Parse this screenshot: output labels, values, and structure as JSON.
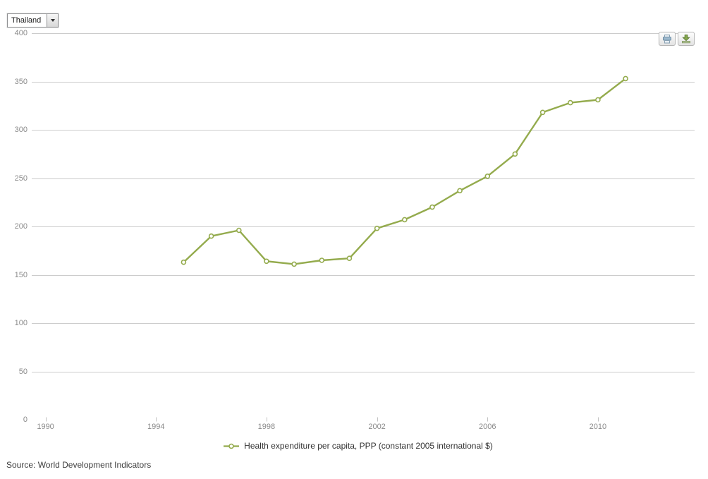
{
  "controls": {
    "country_selector": {
      "value": "Thailand"
    }
  },
  "chart_data": {
    "type": "line",
    "title": "",
    "xlabel": "",
    "ylabel": "",
    "series": [
      {
        "name": "Health expenditure per capita, PPP (constant 2005 international $)",
        "color": "#94ab4d",
        "x": [
          1995,
          1996,
          1997,
          1998,
          1999,
          2000,
          2001,
          2002,
          2003,
          2004,
          2005,
          2006,
          2007,
          2008,
          2009,
          2010,
          2011
        ],
        "values": [
          163,
          190,
          196,
          164,
          161,
          165,
          167,
          198,
          207,
          220,
          237,
          252,
          275,
          318,
          328,
          331,
          353
        ]
      }
    ],
    "xticks": [
      1990,
      1994,
      1998,
      2002,
      2006,
      2010
    ],
    "yticks": [
      0,
      50,
      100,
      150,
      200,
      250,
      300,
      350,
      400
    ],
    "xlim": [
      1989.5,
      2013.5
    ],
    "ylim": [
      0,
      400
    ],
    "grid": "horizontal-only",
    "markers": true,
    "legend_position": "bottom-center"
  },
  "legend": {
    "label": "Health expenditure per capita, PPP (constant 2005 international $)"
  },
  "source": {
    "text": "Source: World Development Indicators"
  },
  "colors": {
    "grid": "#cccccc",
    "tick": "#c2c2c2",
    "axis_label": "#8a8a8a",
    "legend_text": "#333333",
    "source_text": "#3d3d3d",
    "print_icon": "#9db9ce",
    "download_icon": "#86a84e"
  }
}
